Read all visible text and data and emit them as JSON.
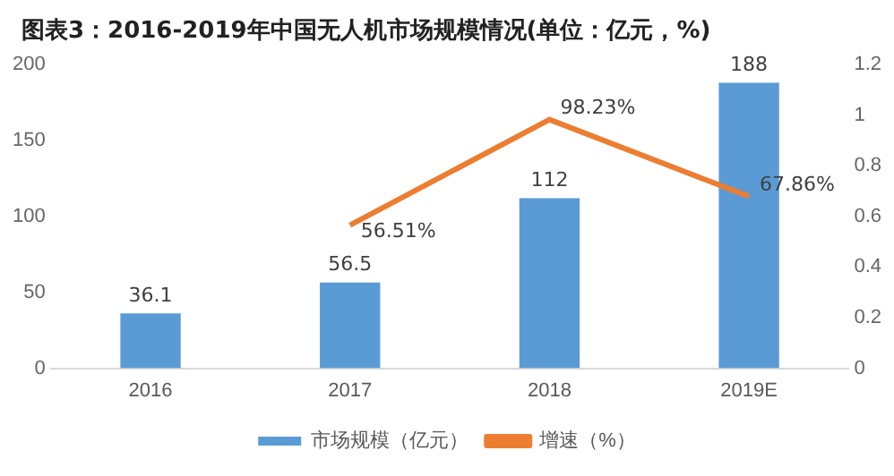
{
  "chart_data": {
    "type": "bar",
    "title": "图表3：2016-2019年中国无人机市场规模情况(单位：亿元，%)",
    "categories": [
      "2016",
      "2017",
      "2018",
      "2019E"
    ],
    "series": [
      {
        "name": "市场规模（亿元）",
        "color": "#5b9bd5",
        "values": [
          36.1,
          56.5,
          112,
          188
        ],
        "value_labels": [
          "36.1",
          "56.5",
          "112",
          "188"
        ]
      },
      {
        "name": "增速（%）",
        "type": "line",
        "axis": "y2",
        "color": "#ed7d31",
        "values": [
          null,
          0.5651,
          0.9823,
          0.6786
        ],
        "value_labels": [
          null,
          "56.51%",
          "98.23%",
          "67.86%"
        ]
      }
    ],
    "ylim": [
      0,
      200
    ],
    "yticks": [
      0,
      50,
      100,
      150,
      200
    ],
    "y2lim": [
      0,
      1.2
    ],
    "y2ticks": [
      0,
      {
        "value": 0.2,
        "label": "0.2"
      },
      {
        "value": 0.4,
        "label": "0.4"
      },
      {
        "value": 0.6,
        "label": "0.6"
      },
      {
        "value": 0.8,
        "label": "0.8"
      },
      1,
      {
        "value": 1.2,
        "label": "1.2"
      }
    ],
    "grid": false,
    "legend": "bottom",
    "marker": "none"
  }
}
